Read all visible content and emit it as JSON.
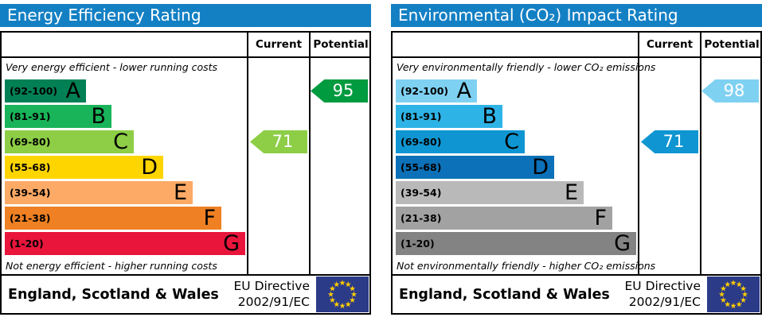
{
  "colors": {
    "header_bar": "#1480c4",
    "flag_bg": "#2b3b87",
    "flag_star": "#ffcc00",
    "border": "#000000"
  },
  "panels": [
    {
      "title": "Energy Efficiency Rating",
      "col_current": "Current",
      "col_potential": "Potential",
      "caption_top": "Very energy efficient - lower running costs",
      "caption_bottom": "Not energy efficient - higher running costs",
      "bands": [
        {
          "letter": "A",
          "range": "(92-100)",
          "min": 92,
          "max": 100,
          "color": "#008054"
        },
        {
          "letter": "B",
          "range": "(81-91)",
          "min": 81,
          "max": 91,
          "color": "#19b459"
        },
        {
          "letter": "C",
          "range": "(69-80)",
          "min": 69,
          "max": 80,
          "color": "#8dce46"
        },
        {
          "letter": "D",
          "range": "(55-68)",
          "min": 55,
          "max": 68,
          "color": "#ffd500"
        },
        {
          "letter": "E",
          "range": "(39-54)",
          "min": 39,
          "max": 54,
          "color": "#fcaa65"
        },
        {
          "letter": "F",
          "range": "(21-38)",
          "min": 21,
          "max": 38,
          "color": "#ef8023"
        },
        {
          "letter": "G",
          "range": "(1-20)",
          "min": 1,
          "max": 20,
          "color": "#e9153b"
        }
      ],
      "arrows": {
        "current": {
          "value": 71,
          "color": "#8dce46"
        },
        "potential": {
          "value": 95,
          "color": "#009a3f"
        }
      },
      "footer": {
        "region": "England, Scotland & Wales",
        "directive_line1": "EU Directive",
        "directive_line2": "2002/91/EC"
      }
    },
    {
      "title": "Environmental (CO₂) Impact Rating",
      "col_current": "Current",
      "col_potential": "Potential",
      "caption_top": "Very environmentally friendly - lower CO₂ emissions",
      "caption_bottom": "Not environmentally friendly - higher CO₂ emissions",
      "bands": [
        {
          "letter": "A",
          "range": "(92-100)",
          "min": 92,
          "max": 100,
          "color": "#7fd1f2"
        },
        {
          "letter": "B",
          "range": "(81-91)",
          "min": 81,
          "max": 91,
          "color": "#2eb3e6"
        },
        {
          "letter": "C",
          "range": "(69-80)",
          "min": 69,
          "max": 80,
          "color": "#0f96d2"
        },
        {
          "letter": "D",
          "range": "(55-68)",
          "min": 55,
          "max": 68,
          "color": "#0c71b8"
        },
        {
          "letter": "E",
          "range": "(39-54)",
          "min": 39,
          "max": 54,
          "color": "#bab9ba"
        },
        {
          "letter": "F",
          "range": "(21-38)",
          "min": 21,
          "max": 38,
          "color": "#a3a2a3"
        },
        {
          "letter": "G",
          "range": "(1-20)",
          "min": 1,
          "max": 20,
          "color": "#848384"
        }
      ],
      "arrows": {
        "current": {
          "value": 71,
          "color": "#0f96d2"
        },
        "potential": {
          "value": 98,
          "color": "#7fd1f2"
        }
      },
      "footer": {
        "region": "England, Scotland & Wales",
        "directive_line1": "EU Directive",
        "directive_line2": "2002/91/EC"
      }
    }
  ],
  "chart_data": [
    {
      "type": "bar",
      "title": "Energy Efficiency Rating",
      "categories": [
        "A",
        "B",
        "C",
        "D",
        "E",
        "F",
        "G"
      ],
      "band_ranges": [
        "92-100",
        "81-91",
        "69-80",
        "55-68",
        "39-54",
        "21-38",
        "1-20"
      ],
      "band_colors": [
        "#008054",
        "#19b459",
        "#8dce46",
        "#ffd500",
        "#fcaa65",
        "#ef8023",
        "#e9153b"
      ],
      "scale": [
        1,
        100
      ],
      "series": [
        {
          "name": "Current",
          "value": 71,
          "band": "C",
          "color": "#8dce46"
        },
        {
          "name": "Potential",
          "value": 95,
          "band": "A",
          "color": "#009a3f"
        }
      ],
      "annotations": [
        "Very energy efficient - lower running costs",
        "Not energy efficient - higher running costs"
      ],
      "footer": "England, Scotland & Wales | EU Directive 2002/91/EC"
    },
    {
      "type": "bar",
      "title": "Environmental (CO₂) Impact Rating",
      "categories": [
        "A",
        "B",
        "C",
        "D",
        "E",
        "F",
        "G"
      ],
      "band_ranges": [
        "92-100",
        "81-91",
        "69-80",
        "55-68",
        "39-54",
        "21-38",
        "1-20"
      ],
      "band_colors": [
        "#7fd1f2",
        "#2eb3e6",
        "#0f96d2",
        "#0c71b8",
        "#bab9ba",
        "#a3a2a3",
        "#848384"
      ],
      "scale": [
        1,
        100
      ],
      "series": [
        {
          "name": "Current",
          "value": 71,
          "band": "C",
          "color": "#0f96d2"
        },
        {
          "name": "Potential",
          "value": 98,
          "band": "A",
          "color": "#7fd1f2"
        }
      ],
      "annotations": [
        "Very environmentally friendly - lower CO₂ emissions",
        "Not environmentally friendly - higher CO₂ emissions"
      ],
      "footer": "England, Scotland & Wales | EU Directive 2002/91/EC"
    }
  ]
}
